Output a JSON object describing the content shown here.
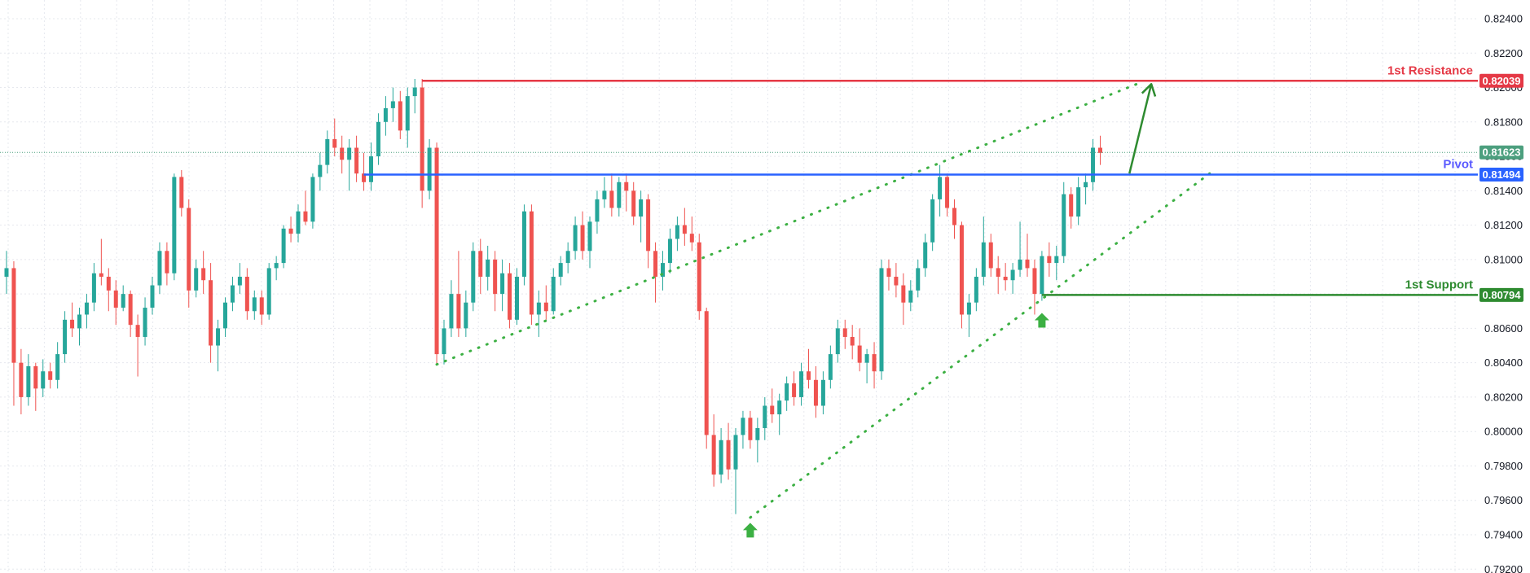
{
  "chart_data": {
    "type": "candlestick",
    "title": "",
    "xlabel": "",
    "ylabel": "",
    "ylim": [
      0.792,
      0.825
    ],
    "y_ticks": [
      "0.82400",
      "0.82200",
      "0.82000",
      "0.81800",
      "0.81600",
      "0.81400",
      "0.81200",
      "0.81000",
      "0.80800",
      "0.80600",
      "0.80400",
      "0.80200",
      "0.80000",
      "0.79800",
      "0.79600",
      "0.79400",
      "0.79200"
    ],
    "grid": "on",
    "candle_colors": {
      "up": "#26a69a",
      "down": "#ef5350"
    },
    "levels": [
      {
        "name": "1st Resistance",
        "value": 0.82039,
        "tag": "0.82039",
        "color": "#e53946",
        "start_index": 57
      },
      {
        "name": "Pivot",
        "value": 0.81494,
        "tag": "0.81494",
        "color": "#2962ff",
        "label_color": "#5b5bff",
        "start_index": 49
      },
      {
        "name": "1st Support",
        "value": 0.80794,
        "tag": "0.80794",
        "color": "#2e8b30",
        "start_index": 142
      }
    ],
    "last_price": {
      "value": 0.81623,
      "tag": "0.81623",
      "color": "#4c9f7e"
    },
    "trendlines": [
      {
        "from": [
          59,
          0.8039
        ],
        "to": [
          155,
          0.8202
        ],
        "style": "dotted",
        "color": "#3cb043"
      },
      {
        "from": [
          102,
          0.795
        ],
        "to": [
          165,
          0.815
        ],
        "style": "dotted",
        "color": "#3cb043"
      }
    ],
    "projection_arrow": {
      "from": [
        154,
        0.815
      ],
      "to": [
        157,
        0.8202
      ],
      "color": "#2e8b30"
    },
    "support_markers": [
      {
        "index": 102,
        "value": 0.7946,
        "color": "#3cb043"
      },
      {
        "index": 142,
        "value": 0.8068,
        "color": "#3cb043"
      }
    ],
    "candles": [
      {
        "o": 0.809,
        "h": 0.8105,
        "l": 0.808,
        "c": 0.8095
      },
      {
        "o": 0.8095,
        "h": 0.8099,
        "l": 0.8015,
        "c": 0.804
      },
      {
        "o": 0.804,
        "h": 0.8048,
        "l": 0.801,
        "c": 0.802
      },
      {
        "o": 0.802,
        "h": 0.8045,
        "l": 0.8015,
        "c": 0.8038
      },
      {
        "o": 0.8038,
        "h": 0.804,
        "l": 0.8012,
        "c": 0.8025
      },
      {
        "o": 0.8025,
        "h": 0.8042,
        "l": 0.802,
        "c": 0.8035
      },
      {
        "o": 0.8035,
        "h": 0.804,
        "l": 0.8025,
        "c": 0.803
      },
      {
        "o": 0.803,
        "h": 0.8052,
        "l": 0.8025,
        "c": 0.8045
      },
      {
        "o": 0.8045,
        "h": 0.807,
        "l": 0.804,
        "c": 0.8065
      },
      {
        "o": 0.8065,
        "h": 0.8075,
        "l": 0.8055,
        "c": 0.806
      },
      {
        "o": 0.806,
        "h": 0.8072,
        "l": 0.805,
        "c": 0.8068
      },
      {
        "o": 0.8068,
        "h": 0.808,
        "l": 0.806,
        "c": 0.8075
      },
      {
        "o": 0.8075,
        "h": 0.8098,
        "l": 0.807,
        "c": 0.8092
      },
      {
        "o": 0.8092,
        "h": 0.8112,
        "l": 0.8085,
        "c": 0.809
      },
      {
        "o": 0.809,
        "h": 0.8095,
        "l": 0.807,
        "c": 0.8082
      },
      {
        "o": 0.8082,
        "h": 0.8088,
        "l": 0.8062,
        "c": 0.8072
      },
      {
        "o": 0.8072,
        "h": 0.8085,
        "l": 0.807,
        "c": 0.808
      },
      {
        "o": 0.808,
        "h": 0.8082,
        "l": 0.8055,
        "c": 0.8062
      },
      {
        "o": 0.8062,
        "h": 0.8068,
        "l": 0.8032,
        "c": 0.8055
      },
      {
        "o": 0.8055,
        "h": 0.8078,
        "l": 0.805,
        "c": 0.8072
      },
      {
        "o": 0.8072,
        "h": 0.809,
        "l": 0.8068,
        "c": 0.8085
      },
      {
        "o": 0.8085,
        "h": 0.811,
        "l": 0.808,
        "c": 0.8105
      },
      {
        "o": 0.8105,
        "h": 0.811,
        "l": 0.8085,
        "c": 0.8092
      },
      {
        "o": 0.8092,
        "h": 0.815,
        "l": 0.8088,
        "c": 0.8148
      },
      {
        "o": 0.8148,
        "h": 0.8152,
        "l": 0.8125,
        "c": 0.813
      },
      {
        "o": 0.813,
        "h": 0.8135,
        "l": 0.8072,
        "c": 0.8082
      },
      {
        "o": 0.8082,
        "h": 0.81,
        "l": 0.8078,
        "c": 0.8095
      },
      {
        "o": 0.8095,
        "h": 0.8105,
        "l": 0.808,
        "c": 0.8088
      },
      {
        "o": 0.8088,
        "h": 0.8098,
        "l": 0.804,
        "c": 0.805
      },
      {
        "o": 0.805,
        "h": 0.8065,
        "l": 0.8035,
        "c": 0.806
      },
      {
        "o": 0.806,
        "h": 0.8078,
        "l": 0.8055,
        "c": 0.8075
      },
      {
        "o": 0.8075,
        "h": 0.809,
        "l": 0.807,
        "c": 0.8085
      },
      {
        "o": 0.8085,
        "h": 0.8098,
        "l": 0.808,
        "c": 0.809
      },
      {
        "o": 0.809,
        "h": 0.8095,
        "l": 0.8065,
        "c": 0.807
      },
      {
        "o": 0.807,
        "h": 0.8082,
        "l": 0.8065,
        "c": 0.8078
      },
      {
        "o": 0.8078,
        "h": 0.8082,
        "l": 0.8062,
        "c": 0.8068
      },
      {
        "o": 0.8068,
        "h": 0.8098,
        "l": 0.8065,
        "c": 0.8095
      },
      {
        "o": 0.8095,
        "h": 0.8102,
        "l": 0.8088,
        "c": 0.8098
      },
      {
        "o": 0.8098,
        "h": 0.812,
        "l": 0.8095,
        "c": 0.8118
      },
      {
        "o": 0.8118,
        "h": 0.8125,
        "l": 0.811,
        "c": 0.8115
      },
      {
        "o": 0.8115,
        "h": 0.8132,
        "l": 0.811,
        "c": 0.8128
      },
      {
        "o": 0.8128,
        "h": 0.814,
        "l": 0.812,
        "c": 0.8122
      },
      {
        "o": 0.8122,
        "h": 0.815,
        "l": 0.8118,
        "c": 0.8148
      },
      {
        "o": 0.8148,
        "h": 0.8162,
        "l": 0.814,
        "c": 0.8155
      },
      {
        "o": 0.8155,
        "h": 0.8175,
        "l": 0.815,
        "c": 0.817
      },
      {
        "o": 0.817,
        "h": 0.8182,
        "l": 0.816,
        "c": 0.8165
      },
      {
        "o": 0.8165,
        "h": 0.8172,
        "l": 0.815,
        "c": 0.8158
      },
      {
        "o": 0.8158,
        "h": 0.817,
        "l": 0.814,
        "c": 0.8165
      },
      {
        "o": 0.8165,
        "h": 0.8172,
        "l": 0.8145,
        "c": 0.815
      },
      {
        "o": 0.815,
        "h": 0.8162,
        "l": 0.814,
        "c": 0.8145
      },
      {
        "o": 0.8145,
        "h": 0.8168,
        "l": 0.814,
        "c": 0.816
      },
      {
        "o": 0.816,
        "h": 0.8185,
        "l": 0.8155,
        "c": 0.818
      },
      {
        "o": 0.818,
        "h": 0.8195,
        "l": 0.8172,
        "c": 0.8188
      },
      {
        "o": 0.8188,
        "h": 0.82,
        "l": 0.818,
        "c": 0.8192
      },
      {
        "o": 0.8192,
        "h": 0.8198,
        "l": 0.817,
        "c": 0.8175
      },
      {
        "o": 0.8175,
        "h": 0.82,
        "l": 0.8165,
        "c": 0.8195
      },
      {
        "o": 0.8195,
        "h": 0.8205,
        "l": 0.8185,
        "c": 0.82
      },
      {
        "o": 0.82,
        "h": 0.8205,
        "l": 0.813,
        "c": 0.814
      },
      {
        "o": 0.814,
        "h": 0.817,
        "l": 0.8135,
        "c": 0.8165
      },
      {
        "o": 0.8165,
        "h": 0.8168,
        "l": 0.8039,
        "c": 0.8045
      },
      {
        "o": 0.8045,
        "h": 0.8065,
        "l": 0.8039,
        "c": 0.806
      },
      {
        "o": 0.806,
        "h": 0.8088,
        "l": 0.8055,
        "c": 0.808
      },
      {
        "o": 0.808,
        "h": 0.8105,
        "l": 0.8055,
        "c": 0.806
      },
      {
        "o": 0.806,
        "h": 0.8082,
        "l": 0.8055,
        "c": 0.8075
      },
      {
        "o": 0.8075,
        "h": 0.811,
        "l": 0.807,
        "c": 0.8105
      },
      {
        "o": 0.8105,
        "h": 0.8112,
        "l": 0.808,
        "c": 0.809
      },
      {
        "o": 0.809,
        "h": 0.8108,
        "l": 0.8082,
        "c": 0.81
      },
      {
        "o": 0.81,
        "h": 0.8105,
        "l": 0.807,
        "c": 0.808
      },
      {
        "o": 0.808,
        "h": 0.81,
        "l": 0.807,
        "c": 0.8092
      },
      {
        "o": 0.8092,
        "h": 0.8098,
        "l": 0.806,
        "c": 0.8065
      },
      {
        "o": 0.8065,
        "h": 0.8095,
        "l": 0.8062,
        "c": 0.809
      },
      {
        "o": 0.809,
        "h": 0.8132,
        "l": 0.8085,
        "c": 0.8128
      },
      {
        "o": 0.8128,
        "h": 0.8132,
        "l": 0.8062,
        "c": 0.8068
      },
      {
        "o": 0.8068,
        "h": 0.8082,
        "l": 0.8055,
        "c": 0.8075
      },
      {
        "o": 0.8075,
        "h": 0.8085,
        "l": 0.8065,
        "c": 0.807
      },
      {
        "o": 0.807,
        "h": 0.8095,
        "l": 0.8068,
        "c": 0.809
      },
      {
        "o": 0.809,
        "h": 0.8102,
        "l": 0.8085,
        "c": 0.8098
      },
      {
        "o": 0.8098,
        "h": 0.811,
        "l": 0.8092,
        "c": 0.8105
      },
      {
        "o": 0.8105,
        "h": 0.8125,
        "l": 0.81,
        "c": 0.812
      },
      {
        "o": 0.812,
        "h": 0.8128,
        "l": 0.81,
        "c": 0.8105
      },
      {
        "o": 0.8105,
        "h": 0.8125,
        "l": 0.8095,
        "c": 0.8122
      },
      {
        "o": 0.8122,
        "h": 0.814,
        "l": 0.8115,
        "c": 0.8135
      },
      {
        "o": 0.8135,
        "h": 0.8148,
        "l": 0.813,
        "c": 0.814
      },
      {
        "o": 0.814,
        "h": 0.815,
        "l": 0.8125,
        "c": 0.813
      },
      {
        "o": 0.813,
        "h": 0.8148,
        "l": 0.8125,
        "c": 0.8145
      },
      {
        "o": 0.8145,
        "h": 0.815,
        "l": 0.8128,
        "c": 0.814
      },
      {
        "o": 0.814,
        "h": 0.8145,
        "l": 0.812,
        "c": 0.8125
      },
      {
        "o": 0.8125,
        "h": 0.814,
        "l": 0.811,
        "c": 0.8135
      },
      {
        "o": 0.8135,
        "h": 0.8138,
        "l": 0.8095,
        "c": 0.8105
      },
      {
        "o": 0.8105,
        "h": 0.811,
        "l": 0.8075,
        "c": 0.809
      },
      {
        "o": 0.809,
        "h": 0.8105,
        "l": 0.8082,
        "c": 0.8098
      },
      {
        "o": 0.8098,
        "h": 0.8118,
        "l": 0.8092,
        "c": 0.8112
      },
      {
        "o": 0.8112,
        "h": 0.8125,
        "l": 0.8105,
        "c": 0.812
      },
      {
        "o": 0.812,
        "h": 0.813,
        "l": 0.8108,
        "c": 0.8115
      },
      {
        "o": 0.8115,
        "h": 0.8125,
        "l": 0.8105,
        "c": 0.811
      },
      {
        "o": 0.811,
        "h": 0.8115,
        "l": 0.8065,
        "c": 0.807
      },
      {
        "o": 0.807,
        "h": 0.8072,
        "l": 0.799,
        "c": 0.7998
      },
      {
        "o": 0.7998,
        "h": 0.801,
        "l": 0.7968,
        "c": 0.7975
      },
      {
        "o": 0.7975,
        "h": 0.8002,
        "l": 0.797,
        "c": 0.7995
      },
      {
        "o": 0.7995,
        "h": 0.8005,
        "l": 0.7972,
        "c": 0.7978
      },
      {
        "o": 0.7978,
        "h": 0.8002,
        "l": 0.7952,
        "c": 0.7998
      },
      {
        "o": 0.7998,
        "h": 0.8012,
        "l": 0.799,
        "c": 0.8008
      },
      {
        "o": 0.8008,
        "h": 0.8012,
        "l": 0.799,
        "c": 0.7995
      },
      {
        "o": 0.7995,
        "h": 0.8008,
        "l": 0.7982,
        "c": 0.8002
      },
      {
        "o": 0.8002,
        "h": 0.802,
        "l": 0.7995,
        "c": 0.8015
      },
      {
        "o": 0.8015,
        "h": 0.8025,
        "l": 0.8005,
        "c": 0.801
      },
      {
        "o": 0.801,
        "h": 0.8022,
        "l": 0.7998,
        "c": 0.8018
      },
      {
        "o": 0.8018,
        "h": 0.8032,
        "l": 0.8012,
        "c": 0.8028
      },
      {
        "o": 0.8028,
        "h": 0.8035,
        "l": 0.8015,
        "c": 0.802
      },
      {
        "o": 0.802,
        "h": 0.804,
        "l": 0.8015,
        "c": 0.8035
      },
      {
        "o": 0.8035,
        "h": 0.8048,
        "l": 0.8025,
        "c": 0.803
      },
      {
        "o": 0.803,
        "h": 0.8038,
        "l": 0.8008,
        "c": 0.8015
      },
      {
        "o": 0.8015,
        "h": 0.8035,
        "l": 0.801,
        "c": 0.803
      },
      {
        "o": 0.803,
        "h": 0.805,
        "l": 0.8025,
        "c": 0.8045
      },
      {
        "o": 0.8045,
        "h": 0.8065,
        "l": 0.804,
        "c": 0.806
      },
      {
        "o": 0.806,
        "h": 0.8065,
        "l": 0.8048,
        "c": 0.8055
      },
      {
        "o": 0.8055,
        "h": 0.8062,
        "l": 0.8042,
        "c": 0.805
      },
      {
        "o": 0.805,
        "h": 0.806,
        "l": 0.8035,
        "c": 0.804
      },
      {
        "o": 0.804,
        "h": 0.8048,
        "l": 0.8028,
        "c": 0.8045
      },
      {
        "o": 0.8045,
        "h": 0.8052,
        "l": 0.8025,
        "c": 0.8035
      },
      {
        "o": 0.8035,
        "h": 0.81,
        "l": 0.803,
        "c": 0.8095
      },
      {
        "o": 0.8095,
        "h": 0.81,
        "l": 0.8082,
        "c": 0.809
      },
      {
        "o": 0.809,
        "h": 0.8098,
        "l": 0.8078,
        "c": 0.8085
      },
      {
        "o": 0.8085,
        "h": 0.8092,
        "l": 0.8062,
        "c": 0.8075
      },
      {
        "o": 0.8075,
        "h": 0.8088,
        "l": 0.807,
        "c": 0.8082
      },
      {
        "o": 0.8082,
        "h": 0.81,
        "l": 0.8078,
        "c": 0.8095
      },
      {
        "o": 0.8095,
        "h": 0.8115,
        "l": 0.809,
        "c": 0.811
      },
      {
        "o": 0.811,
        "h": 0.8138,
        "l": 0.8105,
        "c": 0.8135
      },
      {
        "o": 0.8135,
        "h": 0.8155,
        "l": 0.8125,
        "c": 0.8148
      },
      {
        "o": 0.8148,
        "h": 0.815,
        "l": 0.8125,
        "c": 0.813
      },
      {
        "o": 0.813,
        "h": 0.8135,
        "l": 0.8112,
        "c": 0.812
      },
      {
        "o": 0.812,
        "h": 0.8122,
        "l": 0.806,
        "c": 0.8068
      },
      {
        "o": 0.8068,
        "h": 0.808,
        "l": 0.8055,
        "c": 0.8075
      },
      {
        "o": 0.8075,
        "h": 0.8095,
        "l": 0.807,
        "c": 0.809
      },
      {
        "o": 0.809,
        "h": 0.8125,
        "l": 0.8085,
        "c": 0.811
      },
      {
        "o": 0.811,
        "h": 0.8115,
        "l": 0.809,
        "c": 0.8095
      },
      {
        "o": 0.8095,
        "h": 0.8102,
        "l": 0.808,
        "c": 0.809
      },
      {
        "o": 0.809,
        "h": 0.8098,
        "l": 0.8082,
        "c": 0.8088
      },
      {
        "o": 0.8088,
        "h": 0.8098,
        "l": 0.808,
        "c": 0.8094
      },
      {
        "o": 0.8094,
        "h": 0.8122,
        "l": 0.809,
        "c": 0.81
      },
      {
        "o": 0.81,
        "h": 0.8115,
        "l": 0.809,
        "c": 0.8095
      },
      {
        "o": 0.8095,
        "h": 0.81,
        "l": 0.8068,
        "c": 0.808
      },
      {
        "o": 0.808,
        "h": 0.8105,
        "l": 0.8076,
        "c": 0.8102
      },
      {
        "o": 0.8102,
        "h": 0.811,
        "l": 0.809,
        "c": 0.8098
      },
      {
        "o": 0.8098,
        "h": 0.8108,
        "l": 0.8088,
        "c": 0.8102
      },
      {
        "o": 0.8102,
        "h": 0.8145,
        "l": 0.8098,
        "c": 0.8138
      },
      {
        "o": 0.8138,
        "h": 0.8142,
        "l": 0.8118,
        "c": 0.8125
      },
      {
        "o": 0.8125,
        "h": 0.8148,
        "l": 0.812,
        "c": 0.8142
      },
      {
        "o": 0.8142,
        "h": 0.815,
        "l": 0.8132,
        "c": 0.8145
      },
      {
        "o": 0.8145,
        "h": 0.817,
        "l": 0.814,
        "c": 0.8165
      },
      {
        "o": 0.8165,
        "h": 0.8172,
        "l": 0.8155,
        "c": 0.8162
      }
    ]
  }
}
